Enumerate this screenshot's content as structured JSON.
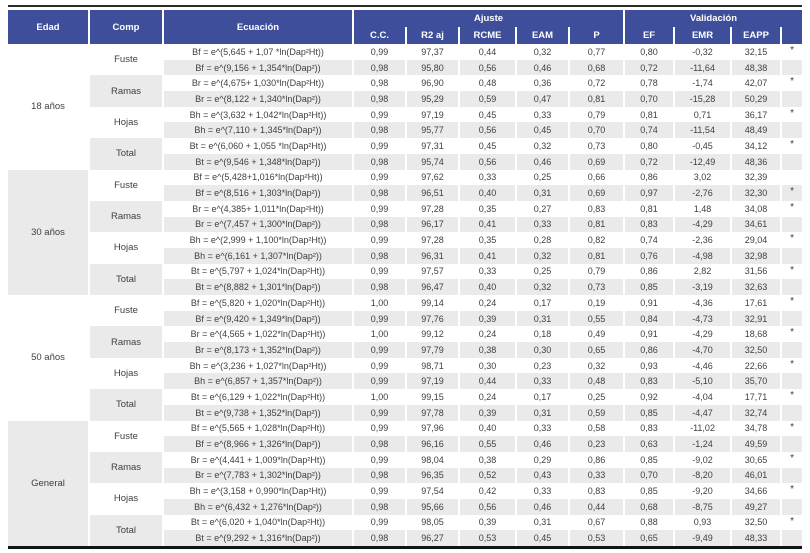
{
  "colors": {
    "header_bg": "#3e4e9b",
    "stripe": "#eaeaea",
    "rule": "#2a2a2a",
    "text": "#3f3f3f"
  },
  "table": {
    "headers": {
      "edad": "Edad",
      "comp": "Comp",
      "ecuacion": "Ecuación",
      "ajuste_group": "Ajuste",
      "validacion_group": "Validación",
      "ajuste_cols": [
        "C.C.",
        "R2 aj",
        "RCME",
        "EAM",
        "P"
      ],
      "validacion_cols": [
        "EF",
        "EMR",
        "EAPP"
      ],
      "sig_col": ""
    },
    "sections": [
      {
        "edad": "18 años",
        "groups": [
          {
            "comp": "Fuste",
            "rows": [
              [
                "Bf = e^(5,645 + 1,07 *ln(Dap²Ht))",
                "0,99",
                "97,37",
                "0,44",
                "0,32",
                "0,77",
                "0,80",
                "-0,32",
                "32,15",
                "*"
              ],
              [
                "Bf = e^(9,156 + 1,354*ln(Dap²))",
                "0,98",
                "95,80",
                "0,56",
                "0,46",
                "0,68",
                "0,72",
                "-11,64",
                "48,38",
                ""
              ]
            ]
          },
          {
            "comp": "Ramas",
            "rows": [
              [
                "Br = e^(4,675+ 1,030*ln(Dap²Ht))",
                "0,98",
                "96,90",
                "0,48",
                "0,36",
                "0,72",
                "0,78",
                "-1,74",
                "42,07",
                "*"
              ],
              [
                "Br = e^(8,122 + 1,340*ln(Dap²))",
                "0,98",
                "95,29",
                "0,59",
                "0,47",
                "0,81",
                "0,70",
                "-15,28",
                "50,29",
                ""
              ]
            ]
          },
          {
            "comp": "Hojas",
            "rows": [
              [
                "Bh = e^(3,632 + 1,042*ln(Dap²Ht))",
                "0,99",
                "97,19",
                "0,45",
                "0,33",
                "0,79",
                "0,81",
                "0,71",
                "36,17",
                "*"
              ],
              [
                "Bh = e^(7,110 + 1,345*ln(Dap²))",
                "0,98",
                "95,77",
                "0,56",
                "0,45",
                "0,70",
                "0,74",
                "-11,54",
                "48,49",
                ""
              ]
            ]
          },
          {
            "comp": "Total",
            "rows": [
              [
                "Bt = e^(6,060 + 1,055 *ln(Dap²Ht))",
                "0,99",
                "97,31",
                "0,45",
                "0,32",
                "0,73",
                "0,80",
                "-0,45",
                "34,12",
                "*"
              ],
              [
                "Bt = e^(9,546 + 1,348*ln(Dap²))",
                "0,98",
                "95,74",
                "0,56",
                "0,46",
                "0,69",
                "0,72",
                "-12,49",
                "48,36",
                ""
              ]
            ]
          }
        ]
      },
      {
        "edad": "30 años",
        "groups": [
          {
            "comp": "Fuste",
            "rows": [
              [
                "Bf = e^(5,428+1,016*ln(Dap²Ht))",
                "0,99",
                "97,62",
                "0,33",
                "0,25",
                "0,66",
                "0,86",
                "3,02",
                "32,39",
                ""
              ],
              [
                "Bf = e^(8,516 + 1,303*ln(Dap²))",
                "0,98",
                "96,51",
                "0,40",
                "0,31",
                "0,69",
                "0,97",
                "-2,76",
                "32,30",
                "*"
              ]
            ]
          },
          {
            "comp": "Ramas",
            "rows": [
              [
                "Br = e^(4,385+ 1,011*ln(Dap²Ht))",
                "0,99",
                "97,28",
                "0,35",
                "0,27",
                "0,83",
                "0,81",
                "1,48",
                "34,08",
                "*"
              ],
              [
                "Br = e^(7,457 + 1,300*ln(Dap²))",
                "0,98",
                "96,17",
                "0,41",
                "0,33",
                "0,81",
                "0,83",
                "-4,29",
                "34,61",
                ""
              ]
            ]
          },
          {
            "comp": "Hojas",
            "rows": [
              [
                "Bh = e^(2,999 + 1,100*ln(Dap²Ht))",
                "0,99",
                "97,28",
                "0,35",
                "0,28",
                "0,82",
                "0,74",
                "-2,36",
                "29,04",
                "*"
              ],
              [
                "Bh = e^(6,161 + 1,307*ln(Dap²))",
                "0,98",
                "96,31",
                "0,41",
                "0,32",
                "0,81",
                "0,76",
                "-4,98",
                "32,98",
                ""
              ]
            ]
          },
          {
            "comp": "Total",
            "rows": [
              [
                "Bt = e^(5,797 + 1,024*ln(Dap²Ht))",
                "0,99",
                "97,57",
                "0,33",
                "0,25",
                "0,79",
                "0,86",
                "2,82",
                "31,56",
                "*"
              ],
              [
                "Bt = e^(8,882 + 1,301*ln(Dap²))",
                "0,98",
                "96,47",
                "0,40",
                "0,32",
                "0,73",
                "0,85",
                "-3,19",
                "32,63",
                ""
              ]
            ]
          }
        ]
      },
      {
        "edad": "50 años",
        "groups": [
          {
            "comp": "Fuste",
            "rows": [
              [
                "Bf = e^(5,820 + 1,020*ln(Dap²Ht))",
                "1,00",
                "99,14",
                "0,24",
                "0,17",
                "0,19",
                "0,91",
                "-4,36",
                "17,61",
                "*"
              ],
              [
                "Bf = e^(9,420 + 1,349*ln(Dap²))",
                "0,99",
                "97,76",
                "0,39",
                "0,31",
                "0,55",
                "0,84",
                "-4,73",
                "32,91",
                ""
              ]
            ]
          },
          {
            "comp": "Ramas",
            "rows": [
              [
                "Br = e^(4,565 + 1,022*ln(Dap²Ht))",
                "1,00",
                "99,12",
                "0,24",
                "0,18",
                "0,49",
                "0,91",
                "-4,29",
                "18,68",
                "*"
              ],
              [
                "Br = e^(8,173 + 1,352*ln(Dap²))",
                "0,99",
                "97,79",
                "0,38",
                "0,30",
                "0,65",
                "0,86",
                "-4,70",
                "32,50",
                ""
              ]
            ]
          },
          {
            "comp": "Hojas",
            "rows": [
              [
                "Bh = e^(3,236 + 1,027*ln(Dap²Ht))",
                "0,99",
                "98,71",
                "0,30",
                "0,23",
                "0,32",
                "0,93",
                "-4,46",
                "22,66",
                "*"
              ],
              [
                "Bh = e^(6,857 + 1,357*ln(Dap²))",
                "0,99",
                "97,19",
                "0,44",
                "0,33",
                "0,48",
                "0,83",
                "-5,10",
                "35,70",
                ""
              ]
            ]
          },
          {
            "comp": "Total",
            "rows": [
              [
                "Bt = e^(6,129 + 1,022*ln(Dap²Ht))",
                "1,00",
                "99,15",
                "0,24",
                "0,17",
                "0,25",
                "0,92",
                "-4,04",
                "17,71",
                "*"
              ],
              [
                "Bt = e^(9,738 + 1,352*ln(Dap²))",
                "0,99",
                "97,78",
                "0,39",
                "0,31",
                "0,59",
                "0,85",
                "-4,47",
                "32,74",
                ""
              ]
            ]
          }
        ]
      },
      {
        "edad": "General",
        "groups": [
          {
            "comp": "Fuste",
            "rows": [
              [
                "Bf = e^(5,565 + 1,028*ln(Dap²Ht))",
                "0,99",
                "97,96",
                "0,40",
                "0,33",
                "0,58",
                "0,83",
                "-11,02",
                "34,78",
                "*"
              ],
              [
                "Bf = e^(8,966 + 1,326*ln(Dap²))",
                "0,98",
                "96,16",
                "0,55",
                "0,46",
                "0,23",
                "0,63",
                "-1,24",
                "49,59",
                ""
              ]
            ]
          },
          {
            "comp": "Ramas",
            "rows": [
              [
                "Br = e^(4,441 + 1,009*ln(Dap²Ht))",
                "0,99",
                "98,04",
                "0,38",
                "0,29",
                "0,86",
                "0,85",
                "-9,02",
                "30,65",
                "*"
              ],
              [
                "Br = e^(7,783 + 1,302*ln(Dap²))",
                "0,98",
                "96,35",
                "0,52",
                "0,43",
                "0,33",
                "0,70",
                "-8,20",
                "46,01",
                ""
              ]
            ]
          },
          {
            "comp": "Hojas",
            "rows": [
              [
                "Bh = e^(3,158 + 0,990*ln(Dap²Ht))",
                "0,99",
                "97,54",
                "0,42",
                "0,33",
                "0,83",
                "0,85",
                "-9,20",
                "34,66",
                "*"
              ],
              [
                "Bh = e^(6,432 + 1,276*ln(Dap²))",
                "0,98",
                "95,66",
                "0,56",
                "0,46",
                "0,44",
                "0,68",
                "-8,75",
                "49,27",
                ""
              ]
            ]
          },
          {
            "comp": "Total",
            "rows": [
              [
                "Bt = e^(6,020 + 1,040*ln(Dap²Ht))",
                "0,99",
                "98,05",
                "0,39",
                "0,31",
                "0,67",
                "0,88",
                "0,93",
                "32,50",
                "*"
              ],
              [
                "Bt = e^(9,292 + 1,316*ln(Dap²))",
                "0,98",
                "96,27",
                "0,53",
                "0,45",
                "0,53",
                "0,65",
                "-9,49",
                "48,33",
                ""
              ]
            ]
          }
        ]
      }
    ]
  }
}
